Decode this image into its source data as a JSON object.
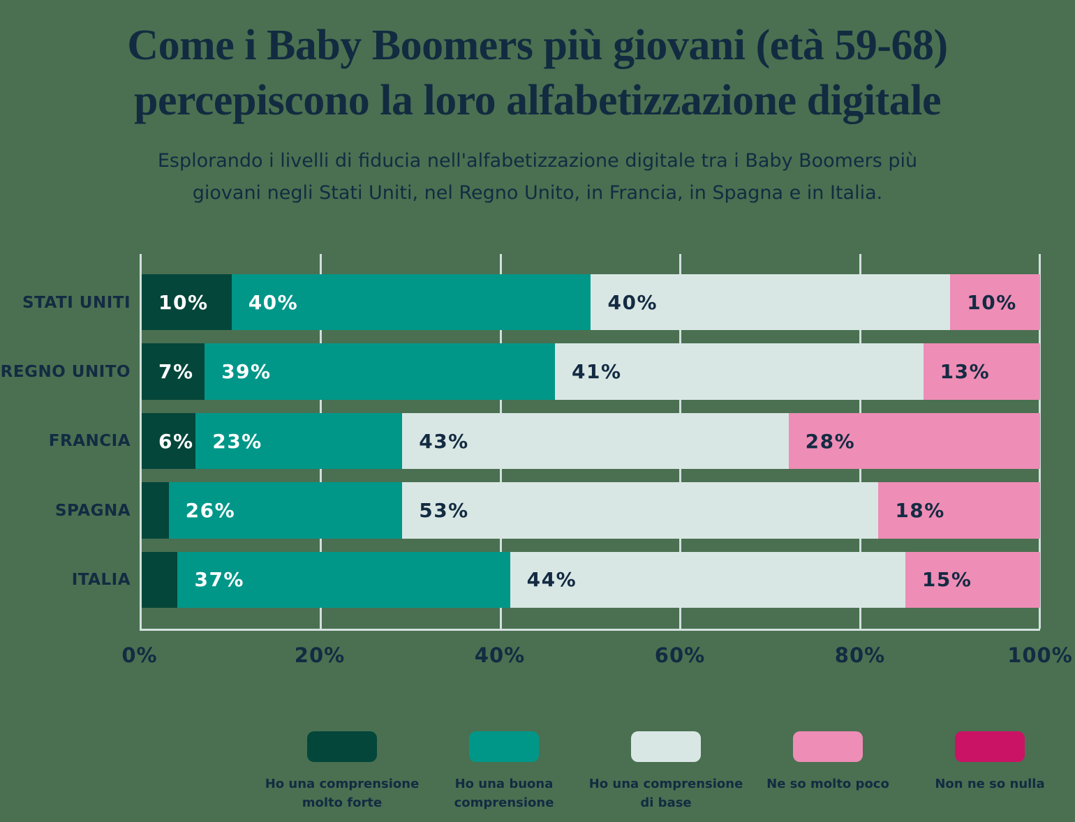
{
  "header": {
    "title_line1": "Come i Baby Boomers più giovani (età 59-68)",
    "title_line2": "percepiscono la loro alfabetizzazione digitale",
    "subtitle_line1": "Esplorando i livelli di fiducia nell'alfabetizzazione digitale tra i Baby Boomers più",
    "subtitle_line2": "giovani negli Stati Uniti, nel Regno Unito, in Francia, in Spagna e in Italia."
  },
  "colors": {
    "background": "#4A7051",
    "text_navy": "#132B42",
    "axis_grid": "#D2E0DD"
  },
  "chart_data": {
    "type": "bar",
    "orientation": "horizontal",
    "stacked": true,
    "unit": "%",
    "xlim": [
      0,
      100
    ],
    "grid": "vertical",
    "legend_position": "bottom",
    "min_label_value": 5,
    "categories": [
      "STATI UNITI",
      "REGNO UNITO",
      "FRANCIA",
      "SPAGNA",
      "ITALIA"
    ],
    "x_ticks": [
      "0%",
      "20%",
      "40%",
      "60%",
      "80%",
      "100%"
    ],
    "series": [
      {
        "name": "Ho una comprensione molto forte",
        "color": "#04463A",
        "label_color": "#FFFFFF",
        "values": [
          10,
          7,
          6,
          3,
          4
        ]
      },
      {
        "name": "Ho una buona comprensione",
        "color": "#009789",
        "label_color": "#FFFFFF",
        "values": [
          40,
          39,
          23,
          26,
          37
        ]
      },
      {
        "name": "Ho una comprensione di base",
        "color": "#D9E7E4",
        "label_color": "#132B42",
        "values": [
          40,
          41,
          43,
          53,
          44
        ]
      },
      {
        "name": "Ne so molto poco",
        "color": "#EE8DB6",
        "label_color": "#132B42",
        "values": [
          10,
          13,
          28,
          18,
          15
        ]
      },
      {
        "name": "Non ne so nulla",
        "color": "#CA1365",
        "label_color": "#FFFFFF",
        "values": [
          0,
          0,
          0,
          0,
          0
        ]
      }
    ]
  }
}
